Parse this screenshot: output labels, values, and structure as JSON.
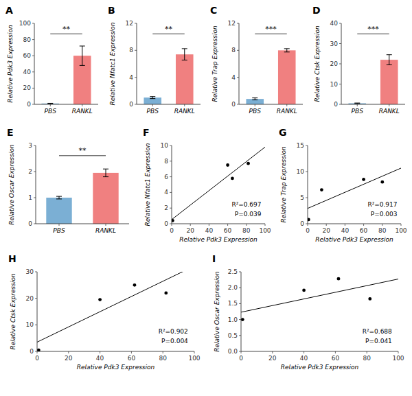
{
  "chart_data": [
    {
      "type": "bar",
      "title": "A",
      "ylabel": "Relative Pdk3 Expression",
      "categories": [
        "PBS",
        "RANKL"
      ],
      "values": [
        1.0,
        60.0
      ],
      "errors": [
        0.3,
        12.0
      ],
      "colors": [
        "#7bafd4",
        "#f08080"
      ],
      "ylim": [
        0,
        100
      ],
      "yticks": [
        0,
        20,
        40,
        60,
        80,
        100
      ],
      "annotations": [
        "**"
      ]
    },
    {
      "type": "bar",
      "title": "B",
      "ylabel": "Relative Nfatc1 Expression",
      "categories": [
        "PBS",
        "RANKL"
      ],
      "values": [
        1.0,
        7.4
      ],
      "errors": [
        0.15,
        0.85
      ],
      "colors": [
        "#7bafd4",
        "#f08080"
      ],
      "ylim": [
        0,
        12
      ],
      "yticks": [
        0,
        4,
        8,
        12
      ],
      "annotations": [
        "**"
      ]
    },
    {
      "type": "bar",
      "title": "C",
      "ylabel": "Relative Trap Expression",
      "categories": [
        "PBS",
        "RANKL"
      ],
      "values": [
        0.8,
        8.0
      ],
      "errors": [
        0.15,
        0.25
      ],
      "colors": [
        "#7bafd4",
        "#f08080"
      ],
      "ylim": [
        0,
        12
      ],
      "yticks": [
        0,
        4,
        8,
        12
      ],
      "annotations": [
        "***"
      ]
    },
    {
      "type": "bar",
      "title": "D",
      "ylabel": "Relative Ctsk Expression",
      "categories": [
        "PBS",
        "RANKL"
      ],
      "values": [
        0.5,
        22.0
      ],
      "errors": [
        0.15,
        2.5
      ],
      "colors": [
        "#7bafd4",
        "#f08080"
      ],
      "ylim": [
        0,
        40
      ],
      "yticks": [
        0,
        10,
        20,
        30,
        40
      ],
      "annotations": [
        "***"
      ]
    },
    {
      "type": "bar",
      "title": "E",
      "ylabel": "Relative Oscar Expression",
      "categories": [
        "PBS",
        "RANKL"
      ],
      "values": [
        1.0,
        1.95
      ],
      "errors": [
        0.05,
        0.15
      ],
      "colors": [
        "#7bafd4",
        "#f08080"
      ],
      "ylim": [
        0,
        3
      ],
      "yticks": [
        0,
        1,
        2,
        3
      ],
      "annotations": [
        "**"
      ]
    },
    {
      "type": "scatter",
      "title": "F",
      "xlabel": "Relative Pdk3 Expression",
      "ylabel": "Relative Nfatc1 Expression",
      "x": [
        1.0,
        60.0,
        65.0,
        82.0
      ],
      "values": [
        0.4,
        7.5,
        5.8,
        7.7
      ],
      "xlim": [
        0,
        100
      ],
      "ylim": [
        0,
        10
      ],
      "xticks": [
        0,
        20,
        40,
        60,
        80,
        100
      ],
      "yticks": [
        0,
        2,
        4,
        6,
        8,
        10
      ],
      "fit": {
        "slope": 0.0926620246,
        "intercept": 0.5315747208
      },
      "annotations": [
        "R²=0.697",
        "P=0.039"
      ]
    },
    {
      "type": "scatter",
      "title": "G",
      "xlabel": "Relative Pdk3 Expression",
      "ylabel": "Relative Trap Expression",
      "x": [
        1.0,
        15.0,
        60.0,
        80.0
      ],
      "values": [
        0.8,
        6.5,
        8.5,
        8.0
      ],
      "xlim": [
        0,
        100
      ],
      "ylim": [
        0,
        15
      ],
      "xticks": [
        0,
        20,
        40,
        60,
        80,
        100
      ],
      "yticks": [
        0,
        5,
        10,
        15
      ],
      "fit": {
        "slope": 0.0772815065,
        "intercept": 2.9360212465
      },
      "annotations": [
        "R²=0.917",
        "P=0.003"
      ]
    },
    {
      "type": "scatter",
      "title": "H",
      "xlabel": "Relative Pdk3 Expression",
      "ylabel": "Relative Ctsk Expression",
      "x": [
        1.0,
        40.0,
        62.0,
        82.0
      ],
      "values": [
        0.5,
        19.5,
        25.0,
        22.0
      ],
      "xlim": [
        0,
        100
      ],
      "ylim": [
        0,
        30
      ],
      "xticks": [
        0,
        20,
        40,
        60,
        80,
        100
      ],
      "yticks": [
        0,
        10,
        20,
        30
      ],
      "fit": {
        "slope": 0.2866929623,
        "intercept": 3.490450493
      },
      "annotations": [
        "R²=0.902",
        "P=0.004"
      ]
    },
    {
      "type": "scatter",
      "title": "I",
      "xlabel": "Relative Pdk3 Expression",
      "ylabel": "Relative Oscar Expression",
      "x": [
        1.0,
        40.0,
        62.0,
        82.0
      ],
      "values": [
        1.0,
        1.92,
        2.28,
        1.65
      ],
      "xlim": [
        0,
        100
      ],
      "ylim": [
        0,
        2.5
      ],
      "xticks": [
        0,
        20,
        40,
        60,
        80,
        100
      ],
      "yticks": [
        {
          "value": 0,
          "label": "0.0"
        },
        0.5,
        {
          "value": 1,
          "label": "1.0"
        },
        1.5,
        {
          "value": 2,
          "label": "2.0"
        },
        2.5
      ],
      "fit": {
        "slope": 0.0104207321,
        "intercept": 1.23054114
      },
      "annotations": [
        "R²=0.688",
        "P=0.041"
      ]
    }
  ]
}
